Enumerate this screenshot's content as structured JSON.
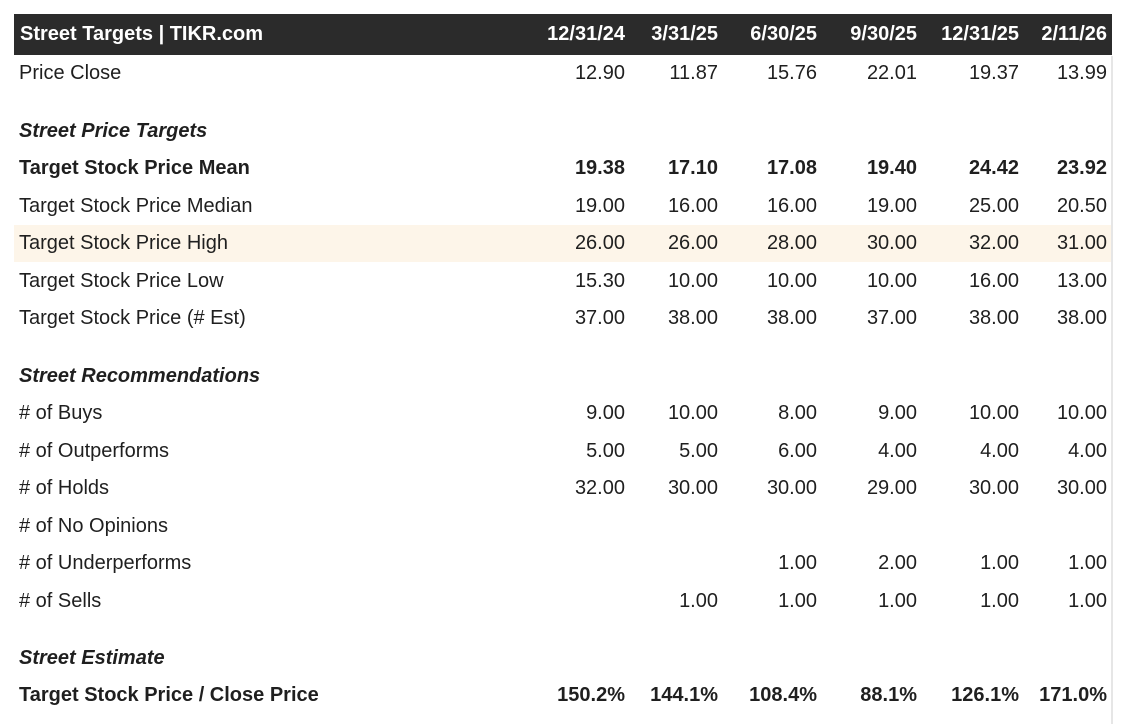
{
  "header": {
    "title": "Street Targets | TIKR.com",
    "dates": [
      "12/31/24",
      "3/31/25",
      "6/30/25",
      "9/30/25",
      "12/31/25",
      "2/11/26"
    ]
  },
  "rows": {
    "price_close": {
      "label": "Price Close",
      "values": [
        "12.90",
        "11.87",
        "15.76",
        "22.01",
        "19.37",
        "13.99"
      ]
    },
    "sec_targets": {
      "label": "Street Price Targets"
    },
    "target_mean": {
      "label": "Target Stock Price Mean",
      "values": [
        "19.38",
        "17.10",
        "17.08",
        "19.40",
        "24.42",
        "23.92"
      ]
    },
    "target_median": {
      "label": "Target Stock Price Median",
      "values": [
        "19.00",
        "16.00",
        "16.00",
        "19.00",
        "25.00",
        "20.50"
      ]
    },
    "target_high": {
      "label": "Target Stock Price High",
      "values": [
        "26.00",
        "26.00",
        "28.00",
        "30.00",
        "32.00",
        "31.00"
      ]
    },
    "target_low": {
      "label": "Target Stock Price Low",
      "values": [
        "15.30",
        "10.00",
        "10.00",
        "10.00",
        "16.00",
        "13.00"
      ]
    },
    "target_est": {
      "label": "Target Stock Price (# Est)",
      "values": [
        "37.00",
        "38.00",
        "38.00",
        "37.00",
        "38.00",
        "38.00"
      ]
    },
    "sec_recs": {
      "label": "Street Recommendations"
    },
    "buys": {
      "label": "# of Buys",
      "values": [
        "9.00",
        "10.00",
        "8.00",
        "9.00",
        "10.00",
        "10.00"
      ]
    },
    "outperforms": {
      "label": "# of Outperforms",
      "values": [
        "5.00",
        "5.00",
        "6.00",
        "4.00",
        "4.00",
        "4.00"
      ]
    },
    "holds": {
      "label": "# of Holds",
      "values": [
        "32.00",
        "30.00",
        "30.00",
        "29.00",
        "30.00",
        "30.00"
      ]
    },
    "no_opinions": {
      "label": "# of No Opinions",
      "values": [
        "",
        "",
        "",
        "",
        "",
        ""
      ]
    },
    "underperforms": {
      "label": "# of Underperforms",
      "values": [
        "",
        "",
        "1.00",
        "2.00",
        "1.00",
        "1.00"
      ]
    },
    "sells": {
      "label": "# of Sells",
      "values": [
        "",
        "1.00",
        "1.00",
        "1.00",
        "1.00",
        "1.00"
      ]
    },
    "sec_estimate": {
      "label": "Street Estimate"
    },
    "target_close": {
      "label": "Target Stock Price / Close Price",
      "values": [
        "150.2%",
        "144.1%",
        "108.4%",
        "88.1%",
        "126.1%",
        "171.0%"
      ]
    }
  },
  "colors": {
    "header_bg": "#2b2b2b",
    "highlight_row": "#fdf5e9",
    "text": "#1f1f1f"
  }
}
